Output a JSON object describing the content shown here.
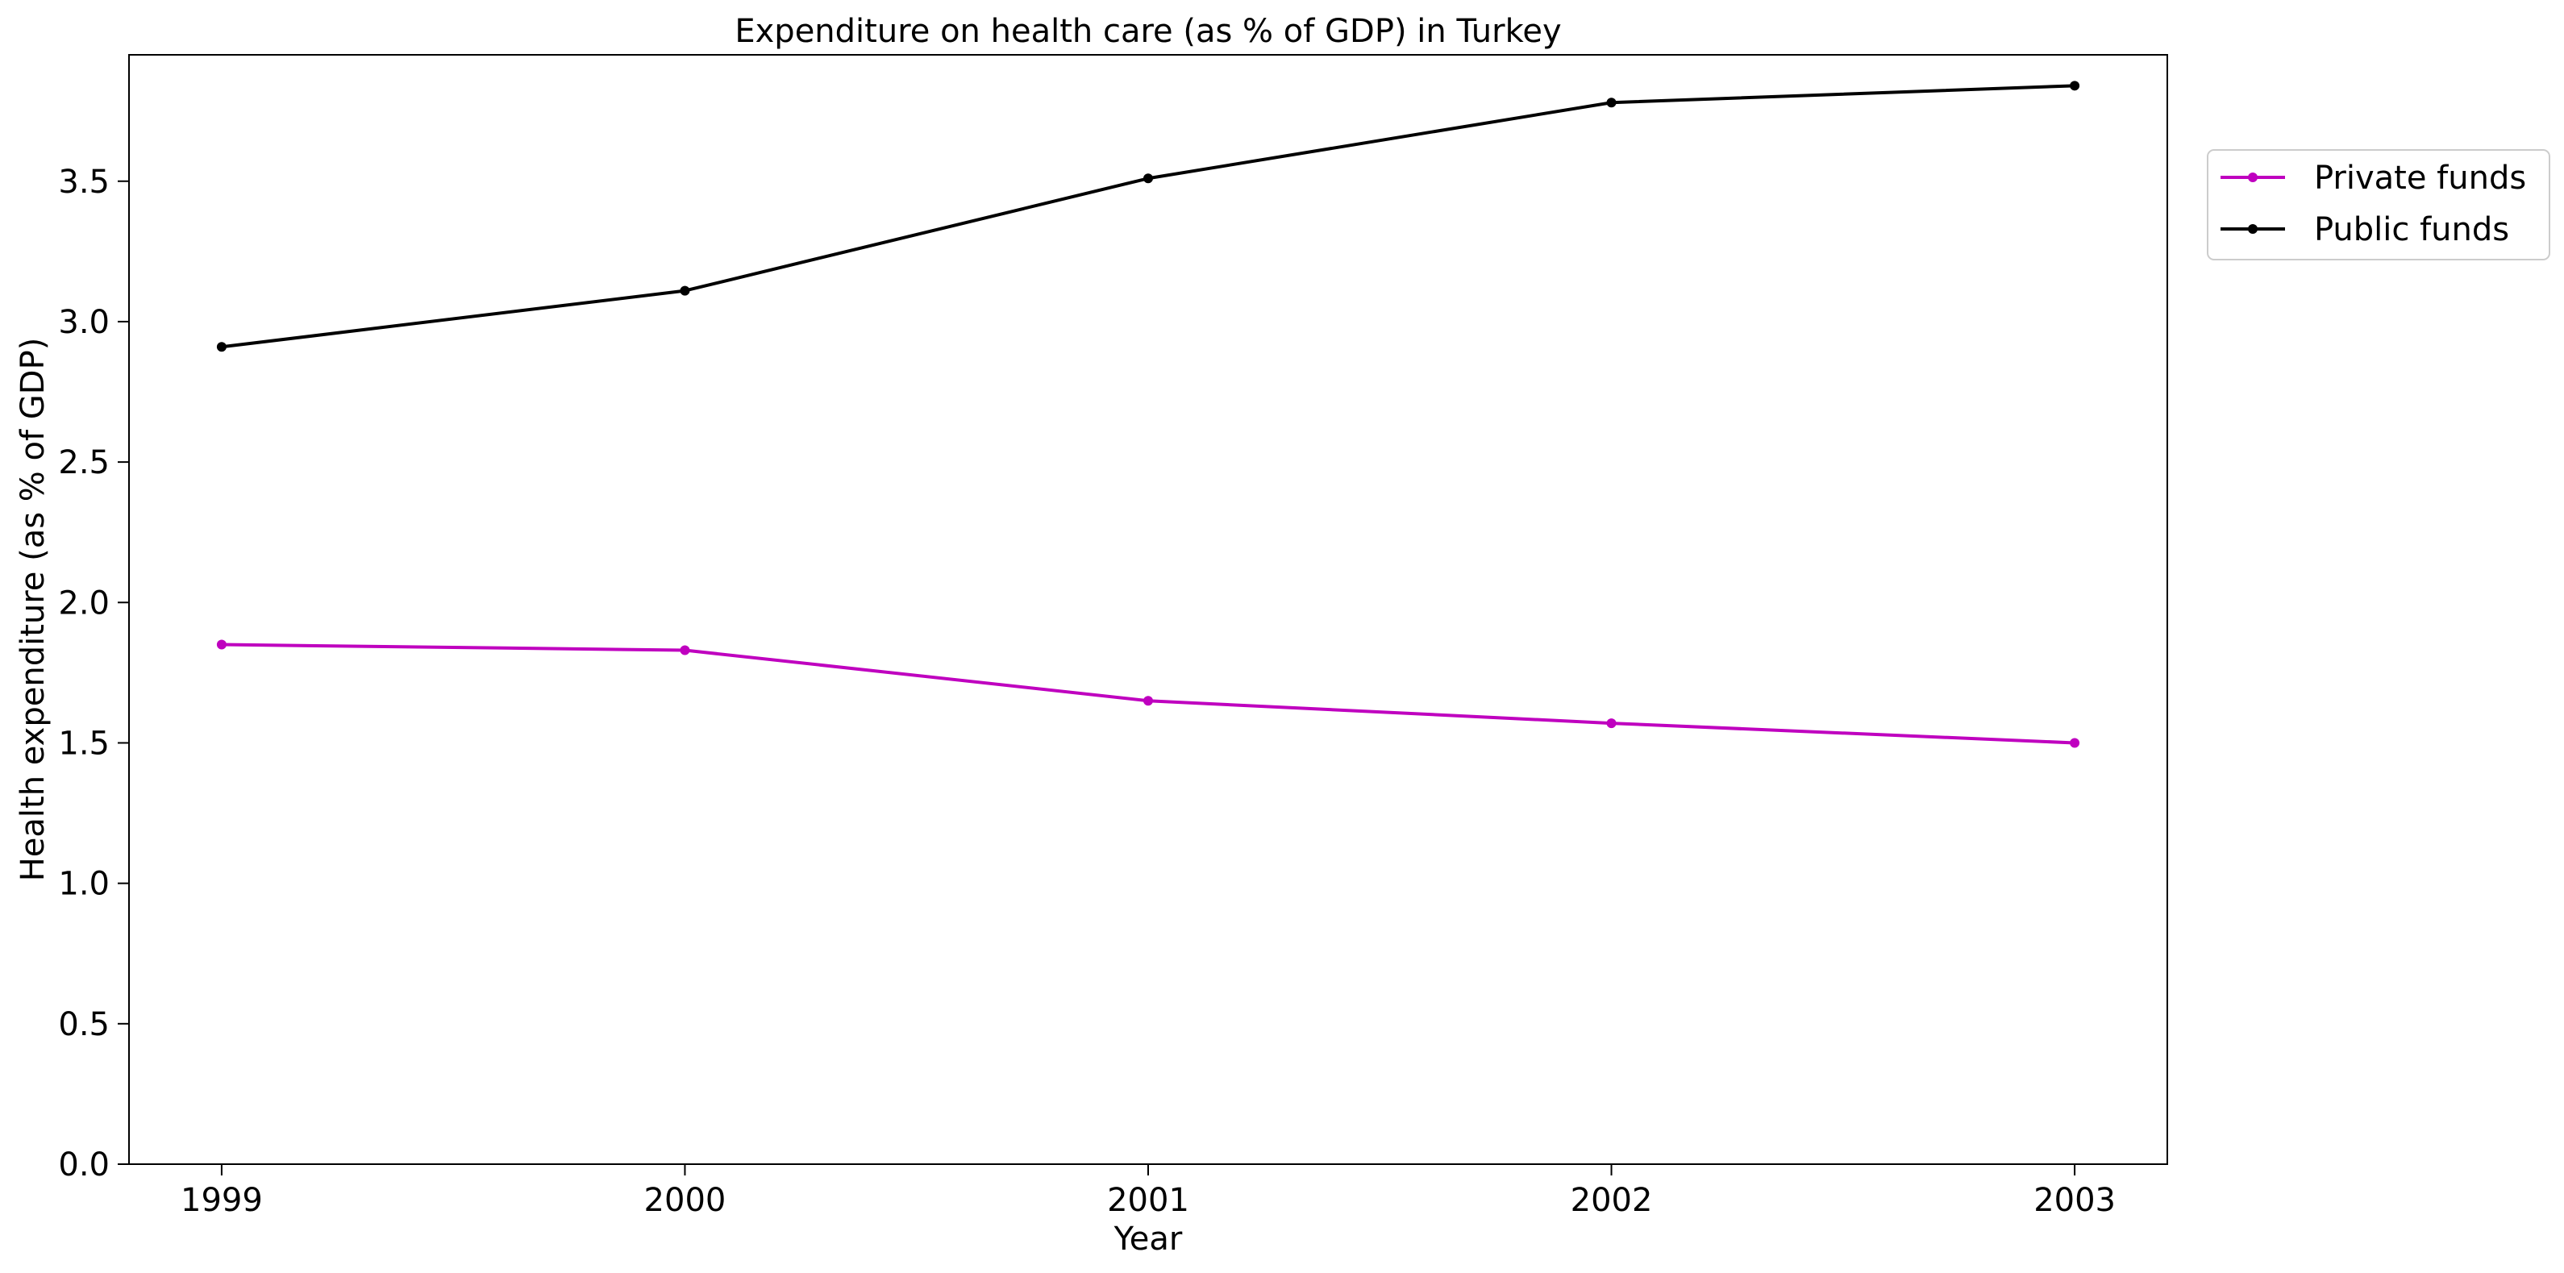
{
  "chart_data": {
    "type": "line",
    "title": "Expenditure on health care (as % of GDP) in Turkey",
    "xlabel": "Year",
    "ylabel": "Health expenditure (as % of GDP)",
    "x": [
      1999,
      2000,
      2001,
      2002,
      2003
    ],
    "x_tick_labels": [
      "1999",
      "2000",
      "2001",
      "2002",
      "2003"
    ],
    "xlim": [
      1998.8,
      2003.2
    ],
    "ylim": [
      0,
      3.95
    ],
    "y_ticks": [
      0.0,
      0.5,
      1.0,
      1.5,
      2.0,
      2.5,
      3.0,
      3.5
    ],
    "y_tick_labels": [
      "0.0",
      "0.5",
      "1.0",
      "1.5",
      "2.0",
      "2.5",
      "3.0",
      "3.5"
    ],
    "grid": false,
    "legend_position": "upper right, outside plot",
    "series": [
      {
        "name": "Private funds",
        "color": "#bf00bf",
        "values": [
          1.85,
          1.83,
          1.65,
          1.57,
          1.5
        ]
      },
      {
        "name": "Public funds",
        "color": "#000000",
        "values": [
          2.91,
          3.11,
          3.51,
          3.78,
          3.84
        ]
      }
    ]
  }
}
